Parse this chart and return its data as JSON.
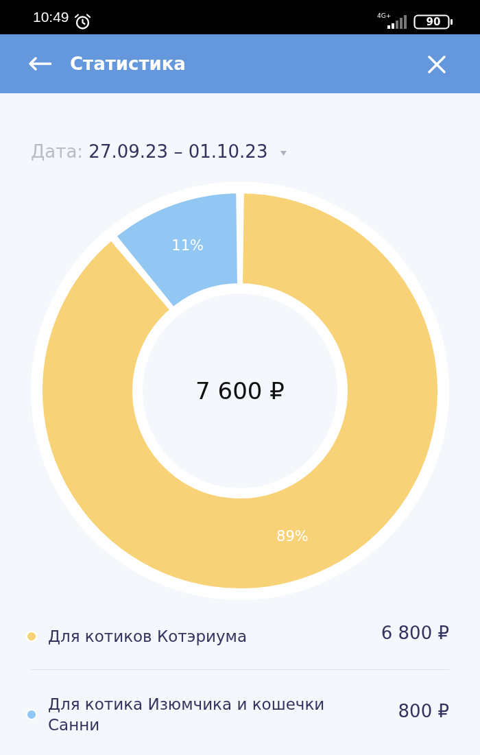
{
  "chart_data": {
    "type": "donut",
    "title": "Статистика",
    "subtitle": "Дата: 27.09.23 – 01.10.23",
    "categories": [
      "Для котиков Котэриума",
      "Для котика Изюмчика и кошечки Санни"
    ],
    "values": [
      89,
      11
    ],
    "colors": [
      "#f8d277",
      "#91c7f2"
    ],
    "value_labels": [
      "89%",
      "11%"
    ],
    "legend": "bottom",
    "annotations": [
      "10:49",
      "4G+",
      "90",
      "7 600 ₽",
      {
        "text": "6 800 ₽",
        "x": "Для котиков Котэриума"
      },
      {
        "text": "800 ₽",
        "x": "Для котика Изюмчика и кошечки Санни"
      }
    ]
  }
}
